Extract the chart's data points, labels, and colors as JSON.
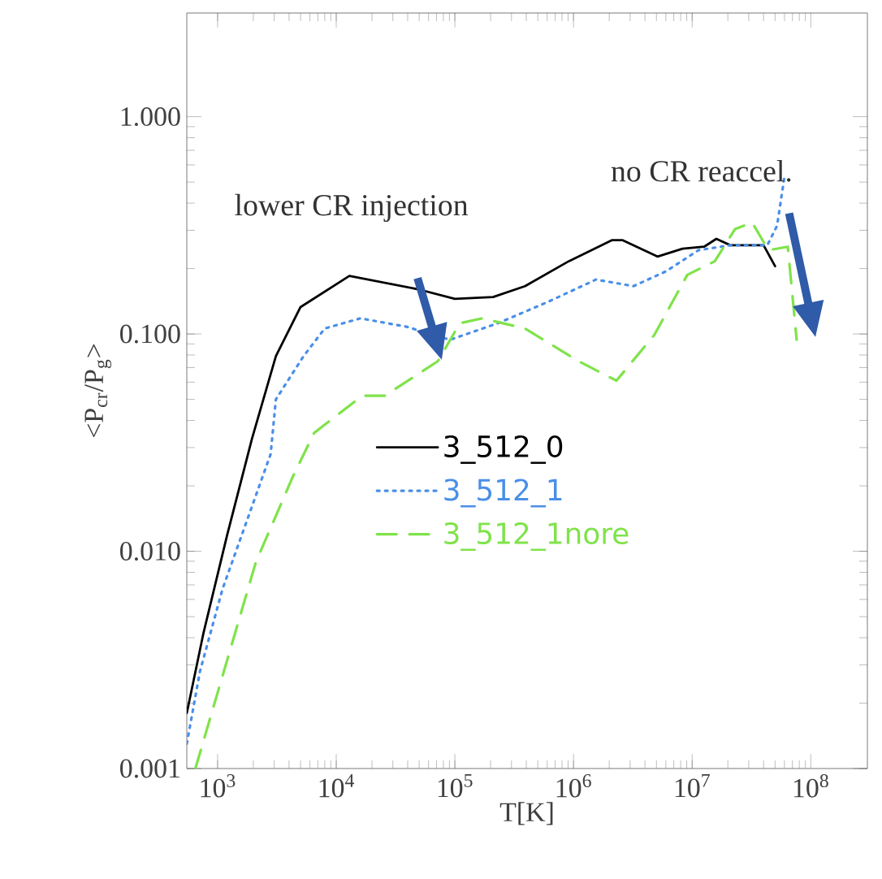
{
  "chart_data": {
    "type": "line",
    "xlabel": "T[K]",
    "ylabel": "<P$_{cr}$/P$_{g}$>",
    "log": "xy",
    "xlim": [
      550,
      300000000
    ],
    "ylim": [
      0.001,
      3.0
    ],
    "xticks": [
      {
        "value": 1000,
        "label": "10$^{3}$"
      },
      {
        "value": 10000,
        "label": "10$^{4}$"
      },
      {
        "value": 100000,
        "label": "10$^{5}$"
      },
      {
        "value": 1000000,
        "label": "10$^{6}$"
      },
      {
        "value": 10000000,
        "label": "10$^{7}$"
      },
      {
        "value": 100000000,
        "label": "10$^{8}$"
      }
    ],
    "yticks": [
      {
        "value": 0.001,
        "label": "0.001"
      },
      {
        "value": 0.01,
        "label": "0.010"
      },
      {
        "value": 0.1,
        "label": "0.100"
      },
      {
        "value": 1,
        "label": "1.000"
      }
    ],
    "grid": false,
    "legend": "center",
    "marker": "none",
    "annotations": [
      "lower CR injection",
      "no CR reaccel."
    ],
    "series": [
      {
        "name": "3_512_0",
        "color": "#000000",
        "line_style": "solid",
        "x": [
          550,
          760,
          1200,
          1950,
          3100,
          5000,
          12900,
          48000,
          100000,
          210000,
          390000,
          910000,
          2100000,
          2600000,
          5100000,
          8300000,
          12600000,
          16000000,
          21000000,
          40000000,
          50000000
        ],
        "values": [
          0.0018,
          0.0042,
          0.0118,
          0.033,
          0.079,
          0.133,
          0.185,
          0.161,
          0.145,
          0.148,
          0.166,
          0.216,
          0.27,
          0.27,
          0.227,
          0.247,
          0.252,
          0.274,
          0.256,
          0.256,
          0.205
        ]
      },
      {
        "name": "3_512_1",
        "color": "#4a8fe8",
        "line_style": "dotted",
        "x": [
          550,
          710,
          1100,
          2800,
          3100,
          5300,
          8000,
          16000,
          39000,
          91000,
          230000,
          600000,
          1550000,
          3200000,
          6000000,
          11300000,
          21000000,
          43000000,
          52000000,
          60000000
        ],
        "values": [
          0.0013,
          0.0028,
          0.0067,
          0.028,
          0.05,
          0.079,
          0.106,
          0.118,
          0.108,
          0.094,
          0.112,
          0.14,
          0.178,
          0.166,
          0.194,
          0.243,
          0.256,
          0.256,
          0.315,
          0.53
        ]
      },
      {
        "name": "3_512_1nore",
        "color": "#7fe34a",
        "line_style": "dashed",
        "x": [
          650,
          2100,
          4300,
          6500,
          16600,
          25700,
          72000,
          110000,
          170000,
          390000,
          1100000,
          2300000,
          4800000,
          9100000,
          15500000,
          23000000,
          32000000,
          44000000,
          64000000,
          76000000
        ],
        "values": [
          0.001,
          0.0089,
          0.022,
          0.035,
          0.052,
          0.052,
          0.075,
          0.112,
          0.118,
          0.106,
          0.075,
          0.061,
          0.099,
          0.187,
          0.216,
          0.304,
          0.326,
          0.243,
          0.252,
          0.094
        ]
      }
    ]
  }
}
